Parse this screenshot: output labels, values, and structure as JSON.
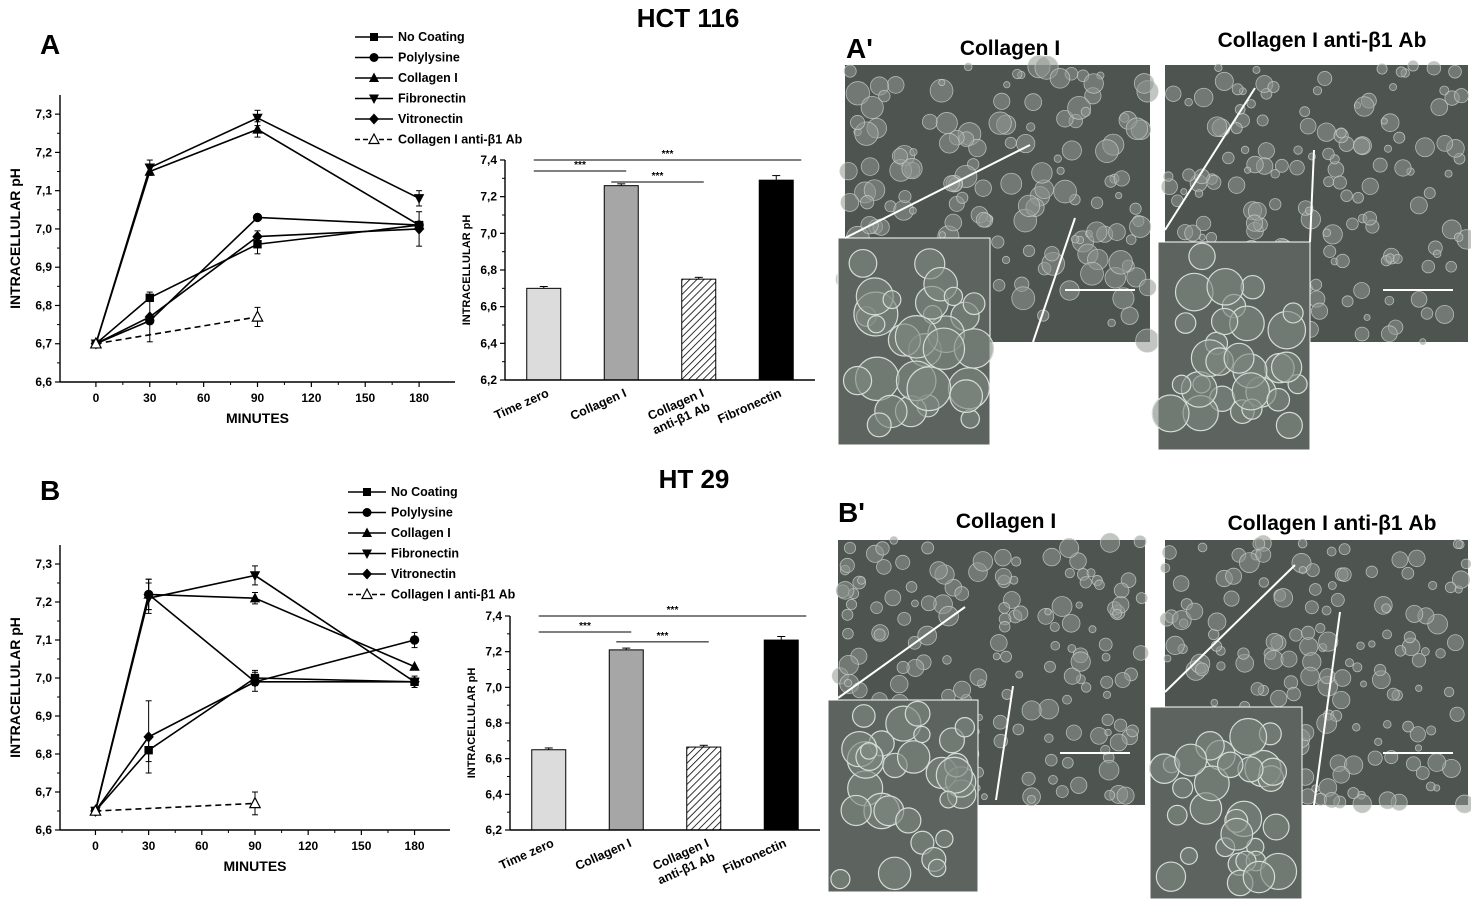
{
  "panels": {
    "A": {
      "letter": "A",
      "cell_line": "HCT 116"
    },
    "B": {
      "letter": "B",
      "cell_line": "HT 29"
    },
    "A_prime": {
      "letter": "A'",
      "left_label": "Collagen I",
      "right_label": "Collagen I anti-β1 Ab"
    },
    "B_prime": {
      "letter": "B'",
      "left_label": "Collagen I",
      "right_label": "Collagen I anti-β1 Ab"
    }
  },
  "colors": {
    "ink": "#000000",
    "bar_time_zero": "#dcdcdc",
    "bar_collagen": "#a6a6a6",
    "bar_fibronectin": "#000000",
    "micro_bg": "#4e5450",
    "micro_cell": "#8f9690",
    "micro_edge": "#c9cfc9"
  },
  "icons": {
    "no_coating": "square-marker-icon",
    "polylysine": "circle-marker-icon",
    "collagen_i": "triangle-up-marker-icon",
    "fibronectin": "triangle-down-marker-icon",
    "vitronectin": "diamond-marker-icon",
    "anti_b1": "open-triangle-marker-icon"
  },
  "chart_data": [
    {
      "id": "A-line",
      "type": "line",
      "xlabel": "MINUTES",
      "ylabel": "INTRACELLULAR pH",
      "xlim": [
        -20,
        200
      ],
      "ylim": [
        6.6,
        7.35
      ],
      "xticks": [
        0,
        30,
        60,
        90,
        120,
        150,
        180
      ],
      "yticks": [
        "6,6",
        "6,7",
        "6,8",
        "6,9",
        "7,0",
        "7,1",
        "7,2",
        "7,3"
      ],
      "yticks_values": [
        6.6,
        6.7,
        6.8,
        6.9,
        7.0,
        7.1,
        7.2,
        7.3
      ],
      "legend_position": "top-right",
      "series": [
        {
          "key": "no_coating",
          "name": "No Coating",
          "marker": "square",
          "dashed": false,
          "x": [
            0,
            30,
            90,
            180
          ],
          "y": [
            6.7,
            6.82,
            6.96,
            7.01
          ],
          "err": [
            0,
            0,
            0.025,
            0
          ]
        },
        {
          "key": "polylysine",
          "name": "Polylysine",
          "marker": "circle",
          "dashed": false,
          "x": [
            0,
            30,
            90,
            180
          ],
          "y": [
            6.7,
            6.76,
            7.03,
            7.01
          ],
          "err": [
            0,
            0,
            0,
            0
          ]
        },
        {
          "key": "collagen_i",
          "name": "Collagen I",
          "marker": "triangle-up",
          "dashed": false,
          "x": [
            0,
            30,
            90,
            180
          ],
          "y": [
            6.7,
            7.15,
            7.26,
            7.01
          ],
          "err": [
            0,
            0,
            0.02,
            0
          ]
        },
        {
          "key": "fibronectin",
          "name": "Fibronectin",
          "marker": "triangle-down",
          "dashed": false,
          "x": [
            0,
            30,
            90,
            180
          ],
          "y": [
            6.7,
            7.16,
            7.29,
            7.08
          ],
          "err": [
            0,
            0.02,
            0.02,
            0.02
          ]
        },
        {
          "key": "vitronectin",
          "name": "Vitronectin",
          "marker": "diamond",
          "dashed": false,
          "x": [
            0,
            30,
            90,
            180
          ],
          "y": [
            6.7,
            6.77,
            6.98,
            7.0
          ],
          "err": [
            0,
            0.065,
            0.015,
            0.045
          ]
        },
        {
          "key": "anti_b1",
          "name": "Collagen I anti-β1 Ab",
          "marker": "open-triangle",
          "dashed": true,
          "x": [
            0,
            90
          ],
          "y": [
            6.7,
            6.77
          ],
          "err": [
            0,
            0.025
          ]
        }
      ]
    },
    {
      "id": "A-bar",
      "type": "bar",
      "ylabel": "INTRACELLULAR pH",
      "ylim": [
        6.2,
        7.4
      ],
      "yticks": [
        "6,2",
        "6,4",
        "6,6",
        "6,8",
        "7,0",
        "7,2",
        "7,4"
      ],
      "yticks_values": [
        6.2,
        6.4,
        6.6,
        6.8,
        7.0,
        7.2,
        7.4
      ],
      "categories": [
        "Time zero",
        "Collagen I",
        "Collagen I anti-β1 Ab",
        "Fibronectin"
      ],
      "labels": [
        [
          "Time zero"
        ],
        [
          "Collagen I"
        ],
        [
          "Collagen I",
          "anti-β1 Ab"
        ],
        [
          "Fibronectin"
        ]
      ],
      "values": [
        6.7,
        7.26,
        6.75,
        7.29
      ],
      "errors": [
        0.01,
        0.01,
        0.01,
        0.025
      ],
      "fills": [
        "light",
        "medium",
        "hatched",
        "black"
      ],
      "significance": [
        {
          "from": 0,
          "to": 3,
          "label": "***",
          "level": 7.4
        },
        {
          "from": 0,
          "to": 1,
          "label": "***",
          "level": 7.34
        },
        {
          "from": 1,
          "to": 2,
          "label": "***",
          "level": 7.28
        }
      ]
    },
    {
      "id": "B-line",
      "type": "line",
      "xlabel": "MINUTES",
      "ylabel": "INTRACELLULAR pH",
      "xlim": [
        -20,
        200
      ],
      "ylim": [
        6.6,
        7.35
      ],
      "xticks": [
        0,
        30,
        60,
        90,
        120,
        150,
        180
      ],
      "yticks": [
        "6,6",
        "6,7",
        "6,8",
        "6,9",
        "7,0",
        "7,1",
        "7,2",
        "7,3"
      ],
      "yticks_values": [
        6.6,
        6.7,
        6.8,
        6.9,
        7.0,
        7.1,
        7.2,
        7.3
      ],
      "legend_position": "top-right",
      "series": [
        {
          "key": "no_coating",
          "name": "No Coating",
          "marker": "square",
          "dashed": false,
          "x": [
            0,
            30,
            90,
            180
          ],
          "y": [
            6.65,
            6.81,
            7.0,
            6.99
          ],
          "err": [
            0,
            0.03,
            0.02,
            0
          ]
        },
        {
          "key": "polylysine",
          "name": "Polylysine",
          "marker": "circle",
          "dashed": false,
          "x": [
            0,
            30,
            90,
            180
          ],
          "y": [
            6.65,
            7.22,
            6.99,
            7.1
          ],
          "err": [
            0,
            0.04,
            0,
            0.02
          ]
        },
        {
          "key": "collagen_i",
          "name": "Collagen I",
          "marker": "triangle-up",
          "dashed": false,
          "x": [
            0,
            30,
            90,
            180
          ],
          "y": [
            6.65,
            7.22,
            7.21,
            7.03
          ],
          "err": [
            0,
            0.04,
            0.015,
            0
          ]
        },
        {
          "key": "fibronectin",
          "name": "Fibronectin",
          "marker": "triangle-down",
          "dashed": false,
          "x": [
            0,
            30,
            90,
            180
          ],
          "y": [
            6.65,
            7.21,
            7.27,
            6.99
          ],
          "err": [
            0,
            0.04,
            0.025,
            0
          ]
        },
        {
          "key": "vitronectin",
          "name": "Vitronectin",
          "marker": "diamond",
          "dashed": false,
          "x": [
            0,
            30,
            90,
            180
          ],
          "y": [
            6.65,
            6.845,
            6.99,
            6.99
          ],
          "err": [
            0,
            0.095,
            0.025,
            0.015
          ]
        },
        {
          "key": "anti_b1",
          "name": "Collagen I anti-β1 Ab",
          "marker": "open-triangle",
          "dashed": true,
          "x": [
            0,
            90
          ],
          "y": [
            6.65,
            6.67
          ],
          "err": [
            0,
            0.03
          ]
        }
      ]
    },
    {
      "id": "B-bar",
      "type": "bar",
      "ylabel": "INTRACELLULAR pH",
      "ylim": [
        6.2,
        7.4
      ],
      "yticks": [
        "6,2",
        "6,4",
        "6,6",
        "6,8",
        "7,0",
        "7,2",
        "7,4"
      ],
      "yticks_values": [
        6.2,
        6.4,
        6.6,
        6.8,
        7.0,
        7.2,
        7.4
      ],
      "categories": [
        "Time zero",
        "Collagen I",
        "Collagen I anti-β1 Ab",
        "Fibronectin"
      ],
      "labels": [
        [
          "Time zero"
        ],
        [
          "Collagen I"
        ],
        [
          "Collagen I",
          "anti-β1 Ab"
        ],
        [
          "Fibronectin"
        ]
      ],
      "values": [
        6.65,
        7.21,
        6.665,
        7.265
      ],
      "errors": [
        0.01,
        0.01,
        0.01,
        0.02
      ],
      "fills": [
        "light",
        "medium",
        "hatched",
        "black"
      ],
      "significance": [
        {
          "from": 0,
          "to": 3,
          "label": "***",
          "level": 7.4
        },
        {
          "from": 0,
          "to": 1,
          "label": "***",
          "level": 7.31
        },
        {
          "from": 1,
          "to": 2,
          "label": "***",
          "level": 7.255
        }
      ]
    }
  ]
}
